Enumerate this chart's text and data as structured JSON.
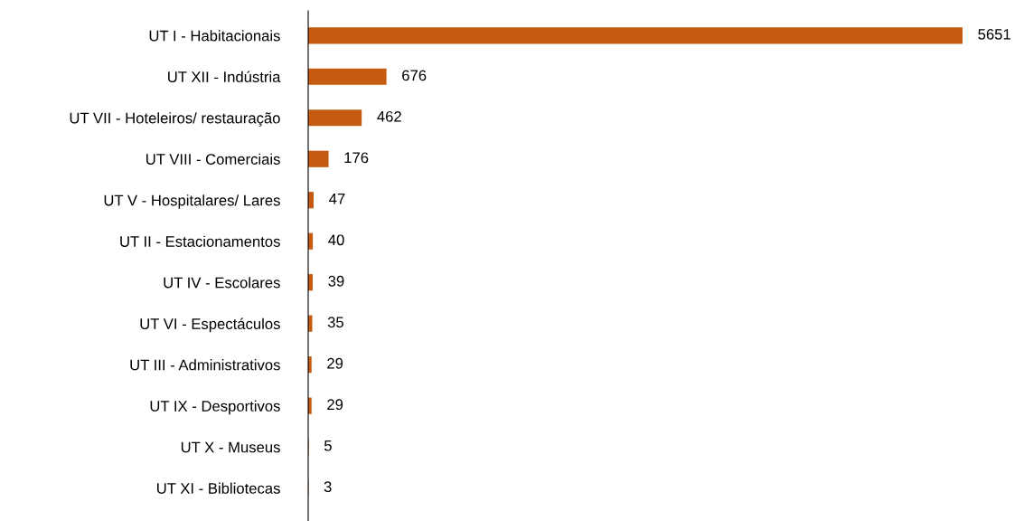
{
  "chart_data": {
    "type": "bar",
    "orientation": "horizontal",
    "categories": [
      "UT I - Habitacionais",
      "UT XII - Indústria",
      "UT VII - Hoteleiros/ restauração",
      "UT VIII - Comerciais",
      "UT V - Hospitalares/ Lares",
      "UT II - Estacionamentos",
      "UT IV - Escolares",
      "UT VI - Espectáculos",
      "UT III - Administrativos",
      "UT IX - Desportivos",
      "UT X - Museus",
      "UT XI - Bibliotecas"
    ],
    "values": [
      5651,
      676,
      462,
      176,
      47,
      40,
      39,
      35,
      29,
      29,
      5,
      3
    ],
    "color": "#c55a11",
    "data_labels": true,
    "grid": false,
    "legend": false
  }
}
